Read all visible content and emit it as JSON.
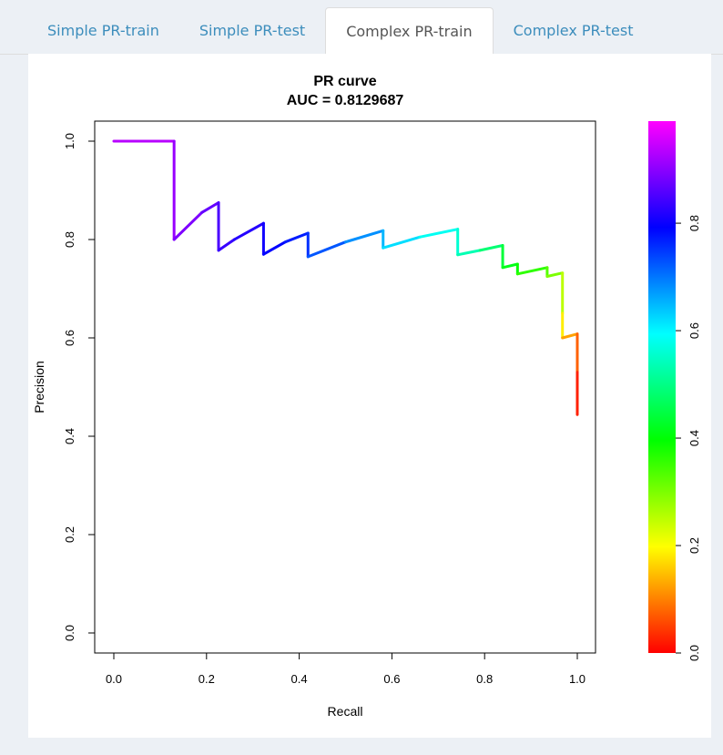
{
  "tabs": [
    {
      "label": "Simple PR-train",
      "active": false
    },
    {
      "label": "Simple PR-test",
      "active": false
    },
    {
      "label": "Complex PR-train",
      "active": true
    },
    {
      "label": "Complex PR-test",
      "active": false
    }
  ],
  "chart_data": {
    "type": "line",
    "title": "PR curve",
    "subtitle": "AUC = 0.8129687",
    "xlabel": "Recall",
    "ylabel": "Precision",
    "xlim": [
      0,
      1
    ],
    "ylim": [
      0,
      1
    ],
    "xticks": [
      "0.0",
      "0.2",
      "0.4",
      "0.6",
      "0.8",
      "1.0"
    ],
    "yticks": [
      "0.0",
      "0.2",
      "0.4",
      "0.6",
      "0.8",
      "1.0"
    ],
    "color_scale": {
      "label_ticks": [
        "0.0",
        "0.2",
        "0.4",
        "0.6",
        "0.8"
      ],
      "range": [
        0,
        0.99
      ],
      "colors": [
        "#ff0000",
        "#ffff00",
        "#00ff00",
        "#00ffff",
        "#0000ff",
        "#ff00ff"
      ]
    },
    "series": [
      {
        "points": [
          {
            "x": 0.0,
            "y": 1.0,
            "t": 0.95
          },
          {
            "x": 0.13,
            "y": 1.0,
            "t": 0.92
          },
          {
            "x": 0.13,
            "y": 0.8,
            "t": 0.9
          },
          {
            "x": 0.19,
            "y": 0.855,
            "t": 0.88
          },
          {
            "x": 0.226,
            "y": 0.875,
            "t": 0.86
          },
          {
            "x": 0.226,
            "y": 0.778,
            "t": 0.84
          },
          {
            "x": 0.26,
            "y": 0.8,
            "t": 0.83
          },
          {
            "x": 0.323,
            "y": 0.833,
            "t": 0.81
          },
          {
            "x": 0.323,
            "y": 0.77,
            "t": 0.8
          },
          {
            "x": 0.37,
            "y": 0.795,
            "t": 0.78
          },
          {
            "x": 0.419,
            "y": 0.813,
            "t": 0.76
          },
          {
            "x": 0.419,
            "y": 0.765,
            "t": 0.75
          },
          {
            "x": 0.5,
            "y": 0.795,
            "t": 0.7
          },
          {
            "x": 0.581,
            "y": 0.818,
            "t": 0.66
          },
          {
            "x": 0.581,
            "y": 0.783,
            "t": 0.64
          },
          {
            "x": 0.66,
            "y": 0.805,
            "t": 0.6
          },
          {
            "x": 0.742,
            "y": 0.821,
            "t": 0.57
          },
          {
            "x": 0.742,
            "y": 0.769,
            "t": 0.55
          },
          {
            "x": 0.79,
            "y": 0.778,
            "t": 0.52
          },
          {
            "x": 0.839,
            "y": 0.788,
            "t": 0.45
          },
          {
            "x": 0.839,
            "y": 0.743,
            "t": 0.43
          },
          {
            "x": 0.871,
            "y": 0.75,
            "t": 0.4
          },
          {
            "x": 0.871,
            "y": 0.73,
            "t": 0.38
          },
          {
            "x": 0.935,
            "y": 0.743,
            "t": 0.34
          },
          {
            "x": 0.935,
            "y": 0.725,
            "t": 0.32
          },
          {
            "x": 0.968,
            "y": 0.732,
            "t": 0.28
          },
          {
            "x": 0.968,
            "y": 0.65,
            "t": 0.22
          },
          {
            "x": 0.968,
            "y": 0.6,
            "t": 0.15
          },
          {
            "x": 1.0,
            "y": 0.608,
            "t": 0.1
          },
          {
            "x": 1.0,
            "y": 0.53,
            "t": 0.05
          },
          {
            "x": 1.0,
            "y": 0.444,
            "t": 0.0
          }
        ]
      }
    ]
  }
}
